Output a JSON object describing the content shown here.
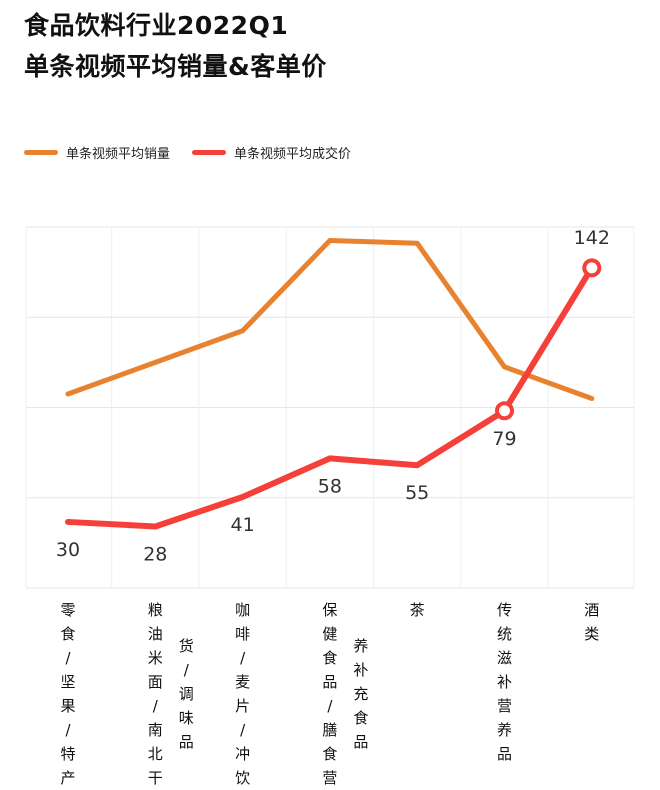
{
  "title_line1": "食品饮料行业2022Q1",
  "title_line2": "单条视频平均销量&客单价",
  "colors": {
    "sales": "#E8822E",
    "price": "#F5403A",
    "grid": "#E6E6E6"
  },
  "chart_data": {
    "type": "line",
    "categories": [
      "零食/坚果/特产",
      "粮油米面/南北干货/调味品",
      "咖啡/麦片/冲饮",
      "保健食品/膳食营养补充食品",
      "茶",
      "传统滋补营养品",
      "酒类"
    ],
    "category_columns": [
      [
        [
          "零",
          "食",
          "/",
          "坚",
          "果",
          "/",
          "特",
          "产"
        ]
      ],
      [
        [
          "粮",
          "油",
          "米",
          "面",
          "/",
          "南",
          "北",
          "干"
        ],
        [
          "货",
          "/",
          "调",
          "味",
          "品"
        ]
      ],
      [
        [
          "咖",
          "啡",
          "/",
          "麦",
          "片",
          "/",
          "冲",
          "饮"
        ]
      ],
      [
        [
          "保",
          "健",
          "食",
          "品",
          "/",
          "膳",
          "食",
          "营"
        ],
        [
          "养",
          "补",
          "充",
          "食",
          "品"
        ]
      ],
      [
        [
          "茶"
        ]
      ],
      [
        [
          "传",
          "统",
          "滋",
          "补",
          "营",
          "养",
          "品"
        ]
      ],
      [
        [
          "酒",
          "类"
        ]
      ]
    ],
    "series": [
      {
        "name": "单条视频平均销量",
        "values": [
          2.15,
          2.5,
          2.85,
          3.85,
          3.82,
          2.45,
          2.1
        ],
        "labels_shown": false
      },
      {
        "name": "单条视频平均成交价",
        "values": [
          30,
          28,
          41,
          58,
          55,
          79,
          142
        ],
        "labels_shown": true,
        "marker_indices": [
          5,
          6
        ]
      }
    ],
    "ylim": [
      0,
      4
    ],
    "gridlines": 4,
    "legend": "top-left",
    "xlabel": "",
    "ylabel": ""
  }
}
